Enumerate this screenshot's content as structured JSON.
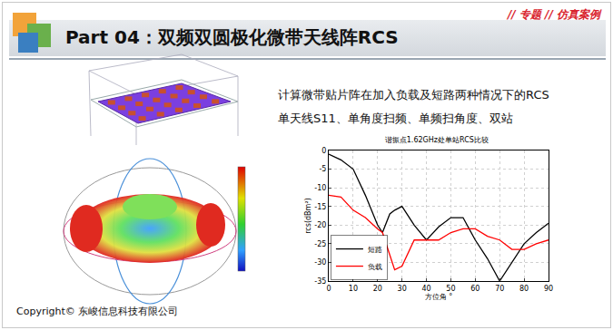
{
  "header": {
    "title": "Part 04：双频双圆极化微带天线阵RCS",
    "tag": "// 专题 // 仿真案例"
  },
  "body": {
    "lines": [
      "计算微带贴片阵在加入负载及短路两种情况下的RCS",
      "单天线S11、单角度扫频、单频扫角度、双站"
    ]
  },
  "footer": "Copyright© 东峻信息科技有限公司",
  "chart_data": {
    "type": "line",
    "title": "谐振点1.62GHz处单站RCS比较",
    "x_label": "方位角 °",
    "y_label": "rcs(dBm²)",
    "x": [
      0,
      5,
      10,
      15,
      20,
      22,
      25,
      27,
      30,
      35,
      40,
      45,
      50,
      55,
      60,
      65,
      70,
      75,
      80,
      85,
      90
    ],
    "series": [
      {
        "name": "短路",
        "color": "#000000",
        "values": [
          -1,
          -2.5,
          -5,
          -12,
          -20,
          -22,
          -17,
          -16,
          -15,
          -20,
          -24,
          -20.5,
          -18,
          -18,
          -24,
          -29,
          -35,
          -30,
          -25,
          -22,
          -19.5
        ]
      },
      {
        "name": "负载",
        "color": "#ff0000",
        "values": [
          -12,
          -12.5,
          -16,
          -18,
          -21,
          -22,
          -28,
          -32,
          -31,
          -24,
          -24,
          -24,
          -22,
          -21,
          -21,
          -23,
          -24,
          -26.5,
          -26.5,
          -25,
          -24
        ]
      }
    ],
    "xlim": [
      0,
      90
    ],
    "xticks": [
      0,
      10,
      20,
      30,
      40,
      50,
      60,
      70,
      80,
      90
    ],
    "ylim": [
      -35,
      0
    ],
    "yticks": [
      -35,
      -30,
      -25,
      -20,
      -15,
      -10,
      -5,
      0
    ],
    "grid": true,
    "legend": "lower left"
  }
}
